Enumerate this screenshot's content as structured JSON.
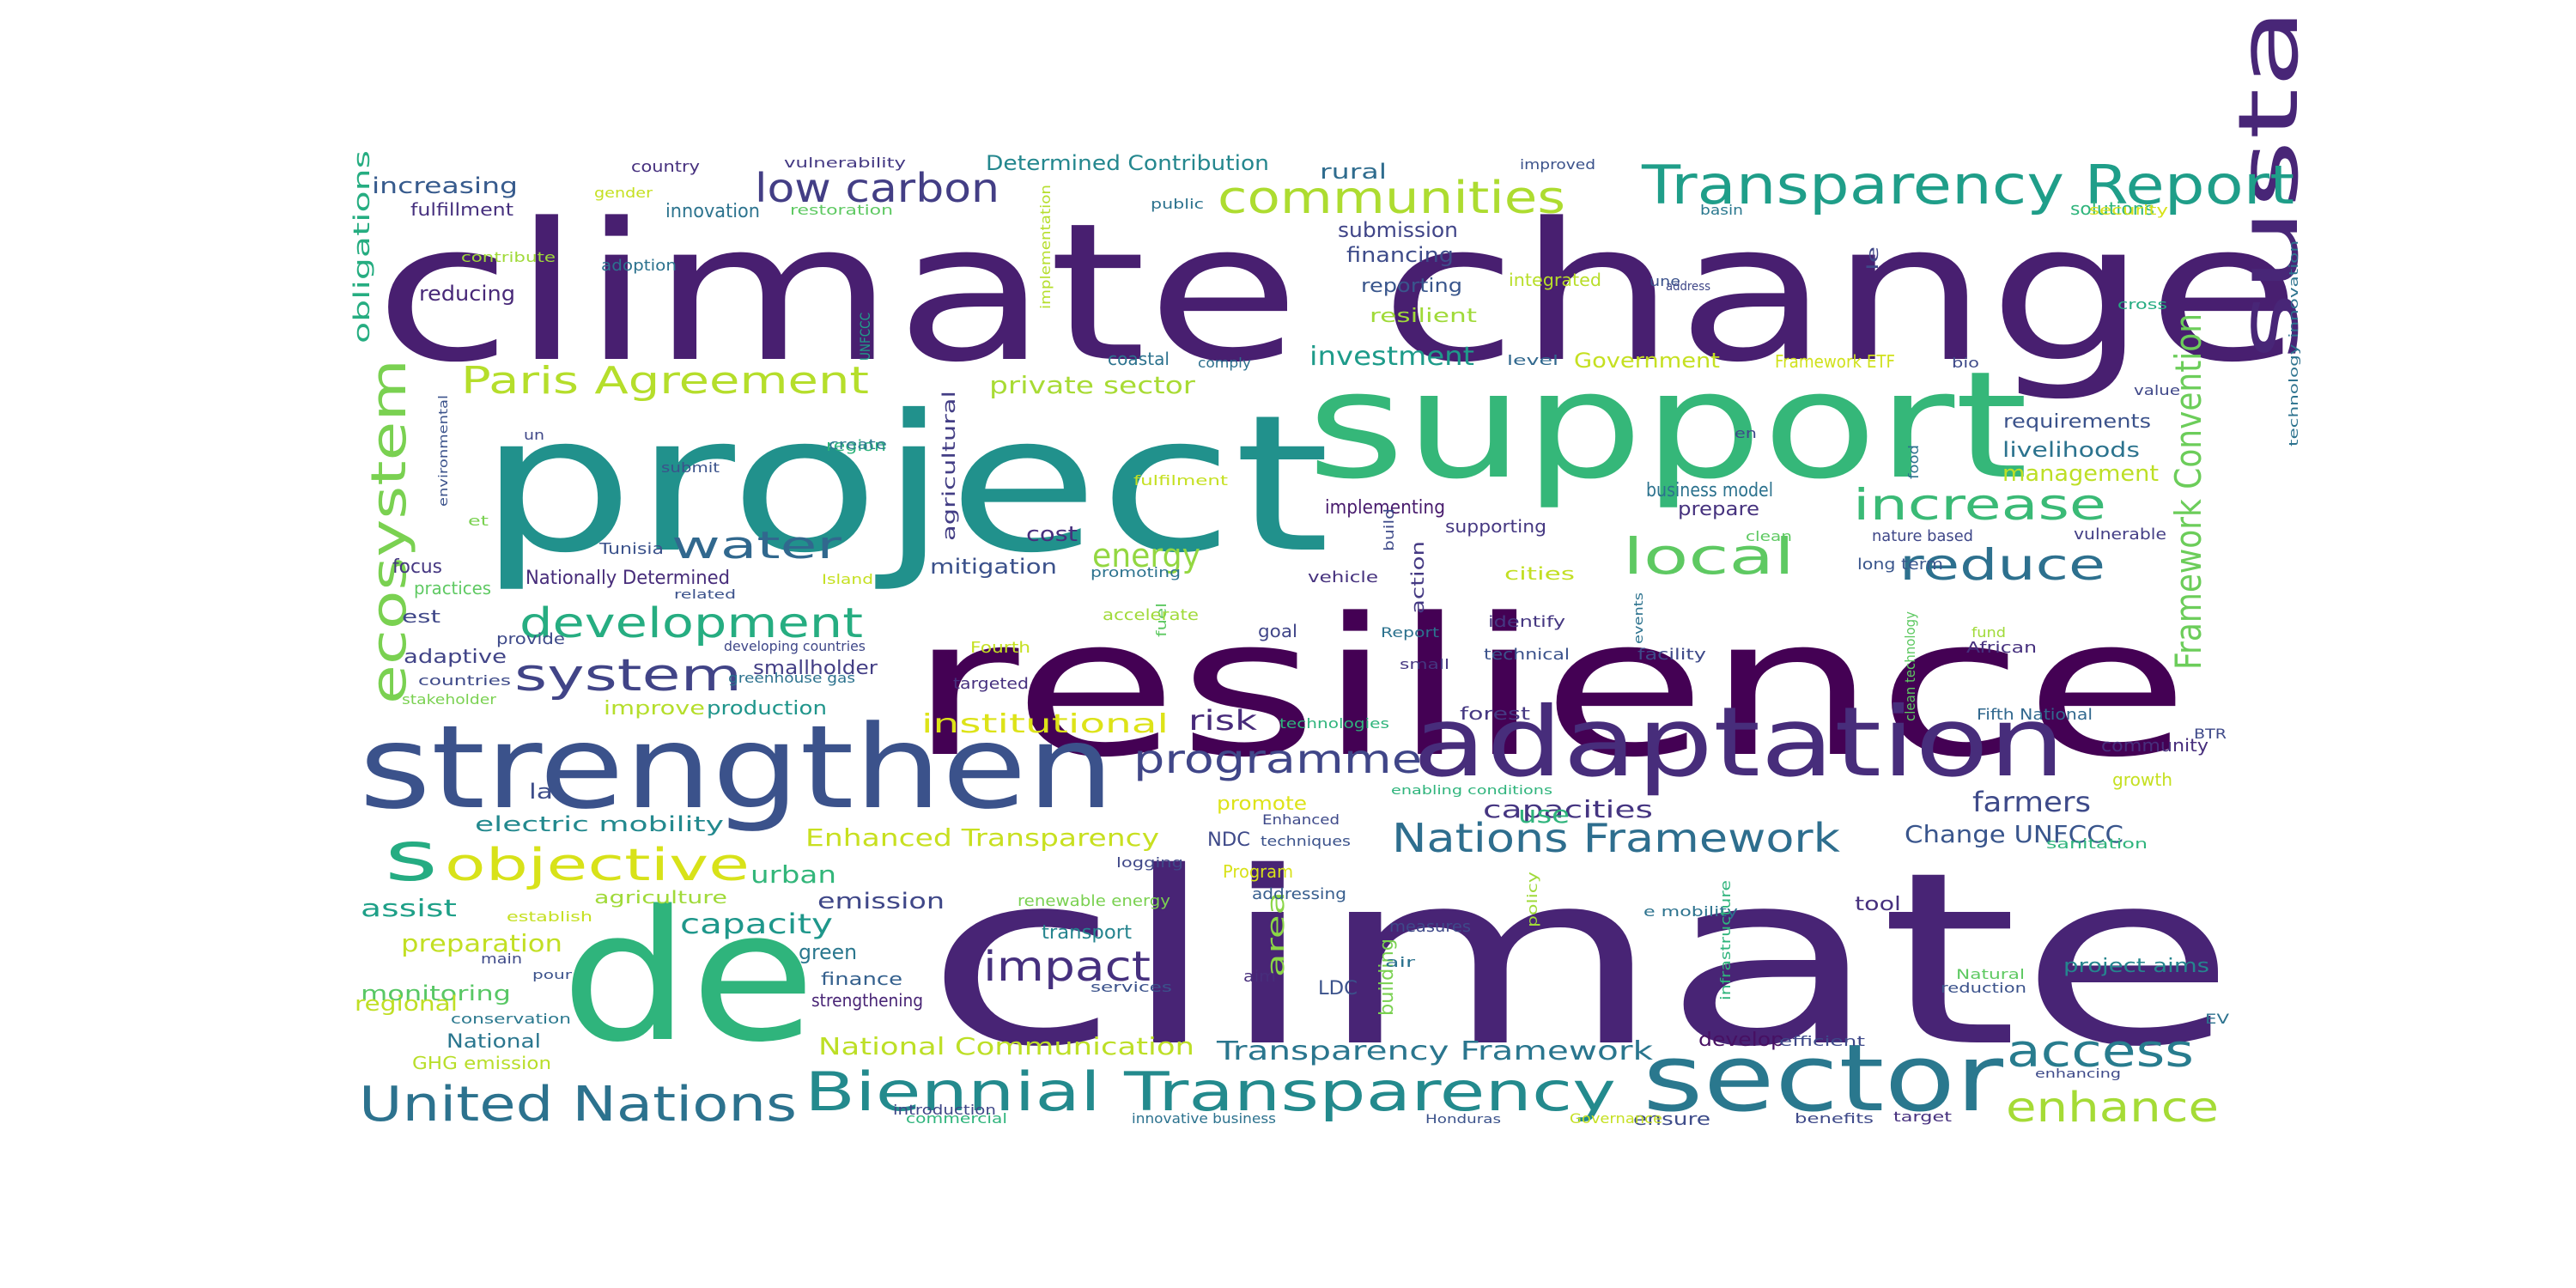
{
  "colors": {
    "background": "#ffffff",
    "palette": [
      "#440154",
      "#46327e",
      "#365c8d",
      "#277f8e",
      "#1fa187",
      "#4ac16d",
      "#a0da39",
      "#fde725"
    ]
  },
  "words": [
    {
      "text": "climate change",
      "color": "#481f70"
    },
    {
      "text": "resilience",
      "color": "#440154"
    },
    {
      "text": "climate",
      "color": "#482475"
    },
    {
      "text": "project",
      "color": "#21918c"
    },
    {
      "text": "support",
      "color": "#35b779"
    },
    {
      "text": "de",
      "color": "#2fb47c"
    },
    {
      "text": "strengthen",
      "color": "#3b528b"
    },
    {
      "text": "adaptation",
      "color": "#472d7b"
    },
    {
      "text": "sustainable",
      "color": "#482677"
    },
    {
      "text": "sector",
      "color": "#2a788e"
    },
    {
      "text": "Transparency Report",
      "color": "#1f9e89"
    },
    {
      "text": "Biennial Transparency",
      "color": "#238a8d"
    },
    {
      "text": "United Nations",
      "color": "#2c728e"
    },
    {
      "text": "ecosystem",
      "color": "#7ad151"
    },
    {
      "text": "Paris Agreement",
      "color": "#b5de2b"
    },
    {
      "text": "communities",
      "color": "#addc30"
    },
    {
      "text": "low carbon",
      "color": "#433e85"
    },
    {
      "text": "water",
      "color": "#31688e"
    },
    {
      "text": "development",
      "color": "#26ad81"
    },
    {
      "text": "system",
      "color": "#414487"
    },
    {
      "text": "objective",
      "color": "#d8e219"
    },
    {
      "text": "s",
      "color": "#25ac82"
    },
    {
      "text": "local",
      "color": "#5ec962"
    },
    {
      "text": "increase",
      "color": "#3aba76"
    },
    {
      "text": "reduce",
      "color": "#2d708e"
    },
    {
      "text": "programme",
      "color": "#404688"
    },
    {
      "text": "Nations Framework",
      "color": "#2e6e8e"
    },
    {
      "text": "Framework Convention",
      "color": "#6ccd5a"
    },
    {
      "text": "access",
      "color": "#287c8e"
    },
    {
      "text": "enhance",
      "color": "#a5db36"
    },
    {
      "text": "impact",
      "color": "#46307e"
    },
    {
      "text": "energy",
      "color": "#93d741"
    },
    {
      "text": "capacity",
      "color": "#1f978b"
    },
    {
      "text": "Enhanced Transparency",
      "color": "#c8e020"
    },
    {
      "text": "National Communication",
      "color": "#bddf26"
    },
    {
      "text": "Transparency Framework",
      "color": "#2a768e"
    },
    {
      "text": "electric mobility",
      "color": "#23898e"
    },
    {
      "text": "institutional",
      "color": "#dde318"
    },
    {
      "text": "Change UNFCCC",
      "color": "#39558c"
    },
    {
      "text": "farmers",
      "color": "#3e4a89"
    },
    {
      "text": "capacities",
      "color": "#453581"
    },
    {
      "text": "management",
      "color": "#bddf26"
    },
    {
      "text": "livelihoods",
      "color": "#2c738e"
    },
    {
      "text": "investment",
      "color": "#1e9b8a"
    },
    {
      "text": "private sector",
      "color": "#a8db34"
    },
    {
      "text": "assist",
      "color": "#1fa088"
    },
    {
      "text": "preparation",
      "color": "#c2df23"
    },
    {
      "text": "monitoring",
      "color": "#58c765"
    },
    {
      "text": "risk",
      "color": "#472a7a"
    },
    {
      "text": "use",
      "color": "#2fb47c"
    },
    {
      "text": "area",
      "color": "#8bd646"
    },
    {
      "text": "emission",
      "color": "#3f4788"
    },
    {
      "text": "mitigation",
      "color": "#3b518b"
    },
    {
      "text": "urban",
      "color": "#32b67a"
    },
    {
      "text": "increasing",
      "color": "#375b8d"
    },
    {
      "text": "Determined Contribution",
      "color": "#24878e"
    },
    {
      "text": "rural",
      "color": "#2f6c8e"
    },
    {
      "text": "financing",
      "color": "#3e4c8a"
    },
    {
      "text": "submission",
      "color": "#404588"
    },
    {
      "text": "reporting",
      "color": "#39568c"
    },
    {
      "text": "resilient",
      "color": "#a0da39"
    },
    {
      "text": "integrated",
      "color": "#b8de29"
    },
    {
      "text": "Government",
      "color": "#c5e021"
    },
    {
      "text": "Framework ETF",
      "color": "#d0e11c"
    },
    {
      "text": "requirements",
      "color": "#3b528b"
    },
    {
      "text": "business model",
      "color": "#2c728e"
    },
    {
      "text": "prepare",
      "color": "#46327e"
    },
    {
      "text": "cost",
      "color": "#472f7d"
    },
    {
      "text": "implementing",
      "color": "#481b6d"
    },
    {
      "text": "supporting",
      "color": "#453882"
    },
    {
      "text": "reducing",
      "color": "#482878"
    },
    {
      "text": "fulfillment",
      "color": "#46307e"
    },
    {
      "text": "innovation",
      "color": "#2c738e"
    },
    {
      "text": "obligations",
      "color": "#26ad81"
    },
    {
      "text": "Nationally Determined",
      "color": "#472c7a"
    },
    {
      "text": "focus",
      "color": "#453781"
    },
    {
      "text": "practices",
      "color": "#5ec962"
    },
    {
      "text": "adaptive",
      "color": "#414487"
    },
    {
      "text": "smallholder",
      "color": "#433e85"
    },
    {
      "text": "improve",
      "color": "#b5de2b"
    },
    {
      "text": "production",
      "color": "#1f958b"
    },
    {
      "text": "la",
      "color": "#3d4d8a"
    },
    {
      "text": "green",
      "color": "#2a778e"
    },
    {
      "text": "finance",
      "color": "#34608d"
    },
    {
      "text": "strengthening",
      "color": "#482475"
    },
    {
      "text": "transport",
      "color": "#25848e"
    },
    {
      "text": "promote",
      "color": "#dde318"
    },
    {
      "text": "NDC",
      "color": "#3e4989"
    },
    {
      "text": "addressing",
      "color": "#365d8d"
    },
    {
      "text": "LDC",
      "color": "#3b528b"
    },
    {
      "text": "aim",
      "color": "#472d7b"
    },
    {
      "text": "building",
      "color": "#7ad151"
    },
    {
      "text": "tool",
      "color": "#46307e"
    },
    {
      "text": "develop",
      "color": "#471063"
    },
    {
      "text": "project aims",
      "color": "#25858e"
    },
    {
      "text": "ensure",
      "color": "#3e4c8a"
    },
    {
      "text": "community",
      "color": "#472e7c"
    },
    {
      "text": "forest",
      "color": "#453882"
    },
    {
      "text": "regional",
      "color": "#c0df25"
    },
    {
      "text": "National",
      "color": "#2a768e"
    },
    {
      "text": "GHG emission",
      "color": "#b8de29"
    },
    {
      "text": "goal",
      "color": "#404588"
    },
    {
      "text": "cities",
      "color": "#c2df23"
    },
    {
      "text": "technical",
      "color": "#3b528b"
    },
    {
      "text": "identify",
      "color": "#453781"
    },
    {
      "text": "vehicle",
      "color": "#46327e"
    },
    {
      "text": "action",
      "color": "#443983"
    },
    {
      "text": "vulnerable",
      "color": "#433e85"
    },
    {
      "text": "nature based",
      "color": "#3f4788"
    },
    {
      "text": "long term",
      "color": "#39558c"
    },
    {
      "text": "clean technology",
      "color": "#5ec962"
    },
    {
      "text": "Fifth National",
      "color": "#31688e"
    },
    {
      "text": "coastal",
      "color": "#2c728e"
    },
    {
      "text": "comply",
      "color": "#2d708e"
    },
    {
      "text": "level",
      "color": "#31688e"
    },
    {
      "text": "Tunisia",
      "color": "#3b528b"
    },
    {
      "text": "est",
      "color": "#3f4788"
    },
    {
      "text": "provide",
      "color": "#3e4a89"
    },
    {
      "text": "country",
      "color": "#46307e"
    },
    {
      "text": "vulnerability",
      "color": "#443983"
    },
    {
      "text": "improved",
      "color": "#3b528b"
    },
    {
      "text": "public",
      "color": "#2c728e"
    },
    {
      "text": "basin",
      "color": "#2a788e"
    },
    {
      "text": "solutions",
      "color": "#2fb47c"
    },
    {
      "text": "security",
      "color": "#d8e219"
    },
    {
      "text": "une",
      "color": "#3b528b"
    },
    {
      "text": "le",
      "color": "#3f4788"
    },
    {
      "text": "cross",
      "color": "#25ac82"
    },
    {
      "text": "adoption",
      "color": "#2c728e"
    },
    {
      "text": "contribute",
      "color": "#a0da39"
    },
    {
      "text": "gender",
      "color": "#c5e021"
    },
    {
      "text": "restoration",
      "color": "#5ec962"
    },
    {
      "text": "implementation",
      "color": "#b5de2b"
    },
    {
      "text": "agricultural",
      "color": "#433e85"
    },
    {
      "text": "region",
      "color": "#2fb47c"
    },
    {
      "text": "create",
      "color": "#2a788e"
    },
    {
      "text": "submit",
      "color": "#3b528b"
    },
    {
      "text": "un",
      "color": "#3f4788"
    },
    {
      "text": "et",
      "color": "#7ad151"
    },
    {
      "text": "environmental",
      "color": "#3b528b"
    },
    {
      "text": "UNFCCC",
      "color": "#1f9e89"
    },
    {
      "text": "fulfilment",
      "color": "#c5e021"
    },
    {
      "text": "bio",
      "color": "#3e4a89"
    },
    {
      "text": "value",
      "color": "#3f4788"
    },
    {
      "text": "technology innovation",
      "color": "#2c728e"
    },
    {
      "text": "food",
      "color": "#2c728e"
    },
    {
      "text": "en",
      "color": "#3e4989"
    },
    {
      "text": "clean",
      "color": "#5ec962"
    },
    {
      "text": "fund",
      "color": "#a0da39"
    },
    {
      "text": "African",
      "color": "#46307e"
    },
    {
      "text": "facility",
      "color": "#3e4989"
    },
    {
      "text": "events",
      "color": "#2c728e"
    },
    {
      "text": "Report",
      "color": "#2c728e"
    },
    {
      "text": "small",
      "color": "#453781"
    },
    {
      "text": "build",
      "color": "#3e4a89"
    },
    {
      "text": "promoting",
      "color": "#2c728e"
    },
    {
      "text": "fuel",
      "color": "#5ec962"
    },
    {
      "text": "accelerate",
      "color": "#a0da39"
    },
    {
      "text": "Fourth",
      "color": "#c5e021"
    },
    {
      "text": "targeted",
      "color": "#46307e"
    },
    {
      "text": "technologies",
      "color": "#2fb47c"
    },
    {
      "text": "Island",
      "color": "#c5e021"
    },
    {
      "text": "related",
      "color": "#3b528b"
    },
    {
      "text": "developing countries",
      "color": "#3f4788"
    },
    {
      "text": "greenhouse gas",
      "color": "#2c728e"
    },
    {
      "text": "countries",
      "color": "#3e4a89"
    },
    {
      "text": "stakeholder",
      "color": "#7ad151"
    },
    {
      "text": "enabling conditions",
      "color": "#2fb47c"
    },
    {
      "text": "Enhanced",
      "color": "#3e4989"
    },
    {
      "text": "techniques",
      "color": "#3b528b"
    },
    {
      "text": "Program",
      "color": "#d8e219"
    },
    {
      "text": "logging",
      "color": "#3f4788"
    },
    {
      "text": "renewable energy",
      "color": "#7ad151"
    },
    {
      "text": "measures",
      "color": "#3e4989"
    },
    {
      "text": "air",
      "color": "#2c728e"
    },
    {
      "text": "policy",
      "color": "#a0da39"
    },
    {
      "text": "e mobility",
      "color": "#2c728e"
    },
    {
      "text": "infrastructure",
      "color": "#2fb47c"
    },
    {
      "text": "growth",
      "color": "#c5e021"
    },
    {
      "text": "sanitation",
      "color": "#2fb47c"
    },
    {
      "text": "BTR",
      "color": "#3e4989"
    },
    {
      "text": "establish",
      "color": "#c5e021"
    },
    {
      "text": "agriculture",
      "color": "#a0da39"
    },
    {
      "text": "main",
      "color": "#3e4a89"
    },
    {
      "text": "pour",
      "color": "#3b528b"
    },
    {
      "text": "conservation",
      "color": "#2a788e"
    },
    {
      "text": "services",
      "color": "#3b528b"
    },
    {
      "text": "efficient",
      "color": "#3e4989"
    },
    {
      "text": "Natural",
      "color": "#5ec962"
    },
    {
      "text": "reduction",
      "color": "#3b528b"
    },
    {
      "text": "EV",
      "color": "#2c728e"
    },
    {
      "text": "enhancing",
      "color": "#3e4a89"
    },
    {
      "text": "introduction",
      "color": "#3f4788"
    },
    {
      "text": "commercial",
      "color": "#2fb47c"
    },
    {
      "text": "innovative business",
      "color": "#2c728e"
    },
    {
      "text": "Honduras",
      "color": "#3b528b"
    },
    {
      "text": "Governance",
      "color": "#c5e021"
    },
    {
      "text": "benefits",
      "color": "#3e4989"
    },
    {
      "text": "target",
      "color": "#46307e"
    },
    {
      "text": "address",
      "color": "#3f4788"
    }
  ]
}
